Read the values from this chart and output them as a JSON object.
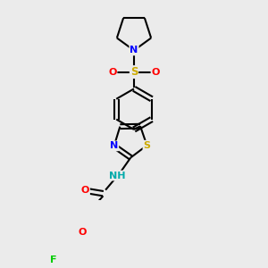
{
  "background_color": "#ebebeb",
  "bond_color": "#000000",
  "atom_colors": {
    "N": "#0000ff",
    "O": "#ff0000",
    "S_sulfonyl": "#ccaa00",
    "S_thiazole": "#ccaa00",
    "F": "#00cc00",
    "NH": "#00aaaa"
  },
  "figsize": [
    3.0,
    3.0
  ],
  "dpi": 100
}
